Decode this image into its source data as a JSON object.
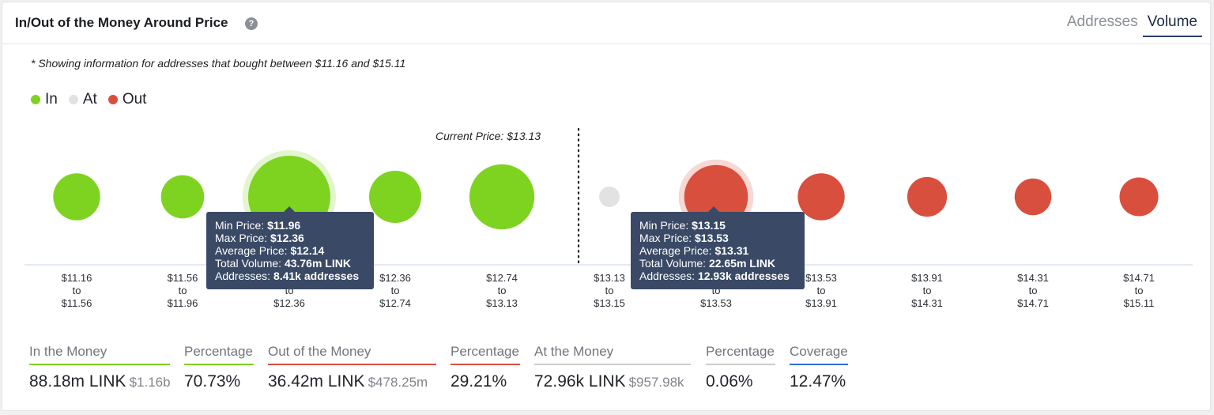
{
  "header": {
    "title": "In/Out of the Money Around Price",
    "help_icon": "?",
    "tabs": [
      {
        "label": "Addresses",
        "active": false
      },
      {
        "label": "Volume",
        "active": true
      }
    ]
  },
  "note": "* Showing information for addresses that bought between $11.16 and $15.11",
  "legend": [
    {
      "label": "In",
      "color": "#7ed321"
    },
    {
      "label": "At",
      "color": "#e2e2e2"
    },
    {
      "label": "Out",
      "color": "#d94f3d"
    }
  ],
  "current_price_label": "Current Price: $13.13",
  "chart_data": {
    "type": "bubble",
    "current_price": 13.13,
    "size_metric": "Total Volume (LINK)",
    "bubbles": [
      {
        "range_from": "$11.16",
        "range_to": "$11.56",
        "status": "in",
        "relative_size": 0.22
      },
      {
        "range_from": "$11.56",
        "range_to": "$11.96",
        "status": "in",
        "relative_size": 0.17
      },
      {
        "range_from": "$11.96",
        "range_to": "$12.36",
        "status": "in",
        "relative_size": 1.0,
        "volume": 43.76,
        "highlight": true
      },
      {
        "range_from": "$12.36",
        "range_to": "$12.74",
        "status": "in",
        "relative_size": 0.3
      },
      {
        "range_from": "$12.74",
        "range_to": "$13.13",
        "status": "in",
        "relative_size": 0.55
      },
      {
        "range_from": "$13.13",
        "range_to": "$13.15",
        "status": "at",
        "relative_size": 0.005
      },
      {
        "range_from": "$13.15",
        "range_to": "$13.53",
        "status": "out",
        "relative_size": 0.52,
        "volume": 22.65,
        "highlight": true
      },
      {
        "range_from": "$13.53",
        "range_to": "$13.91",
        "status": "out",
        "relative_size": 0.22
      },
      {
        "range_from": "$13.91",
        "range_to": "$14.31",
        "status": "out",
        "relative_size": 0.13
      },
      {
        "range_from": "$14.31",
        "range_to": "$14.71",
        "status": "out",
        "relative_size": 0.1
      },
      {
        "range_from": "$14.71",
        "range_to": "$15.11",
        "status": "out",
        "relative_size": 0.12
      }
    ],
    "range_connector": "to"
  },
  "tooltips": [
    {
      "lines": [
        {
          "label": "Min Price: ",
          "value": "$11.96"
        },
        {
          "label": "Max Price: ",
          "value": "$12.36"
        },
        {
          "label": "Average Price: ",
          "value": "$12.14"
        },
        {
          "label": "Total Volume: ",
          "value": "43.76m LINK"
        },
        {
          "label": "Addresses: ",
          "value": "8.41k addresses"
        }
      ]
    },
    {
      "lines": [
        {
          "label": "Min Price: ",
          "value": "$13.15"
        },
        {
          "label": "Max Price: ",
          "value": "$13.53"
        },
        {
          "label": "Average Price: ",
          "value": "$13.31"
        },
        {
          "label": "Total Volume: ",
          "value": "22.65m LINK"
        },
        {
          "label": "Addresses: ",
          "value": "12.93k addresses"
        }
      ]
    }
  ],
  "stats": [
    {
      "label": "In the Money",
      "value": "88.18m LINK",
      "sub": "$1.16b",
      "color": "#7ed321"
    },
    {
      "label": "Percentage",
      "value": "70.73%",
      "sub": "",
      "color": "#7ed321"
    },
    {
      "label": "Out of the Money",
      "value": "36.42m LINK",
      "sub": "$478.25m",
      "color": "#d94f3d"
    },
    {
      "label": "Percentage",
      "value": "29.21%",
      "sub": "",
      "color": "#d94f3d"
    },
    {
      "label": "At the Money",
      "value": "72.96k LINK",
      "sub": "$957.98k",
      "color": "#cccccc"
    },
    {
      "label": "Percentage",
      "value": "0.06%",
      "sub": "",
      "color": "#cccccc"
    },
    {
      "label": "Coverage",
      "value": "12.47%",
      "sub": "",
      "color": "#2f6fd6"
    }
  ]
}
